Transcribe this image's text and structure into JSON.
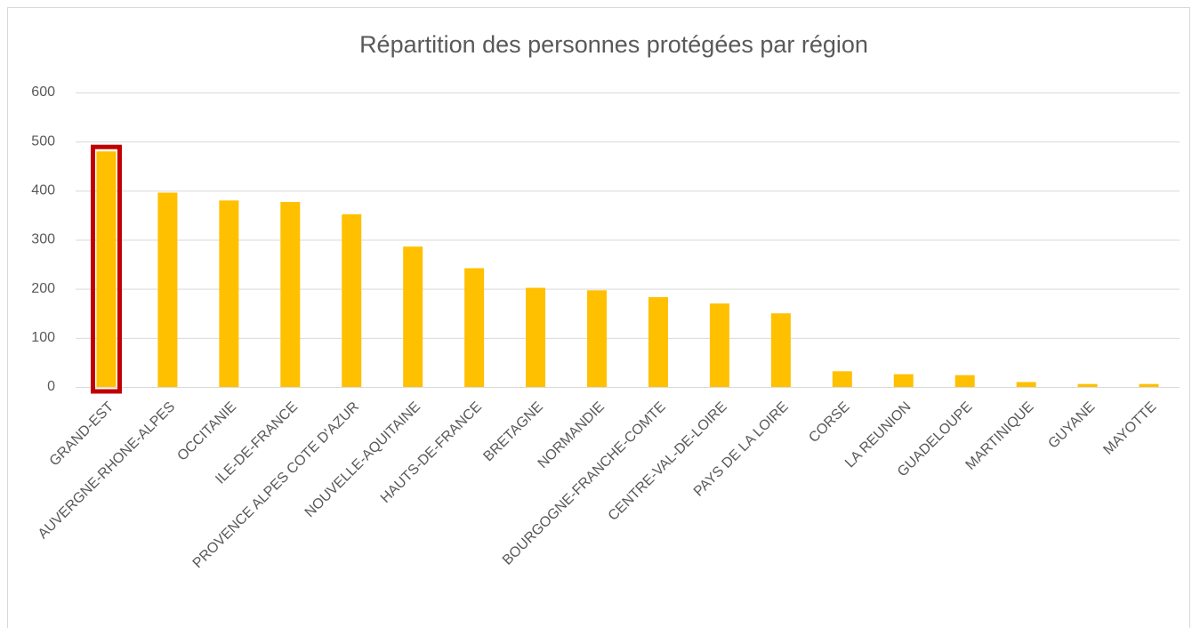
{
  "chart_data": {
    "type": "bar",
    "title": "Répartition des personnes protégées par région",
    "categories": [
      "GRAND-EST",
      "AUVERGNE-RHONE-ALPES",
      "OCCITANIE",
      "ILE-DE-FRANCE",
      "PROVENCE ALPES COTE D'AZUR",
      "NOUVELLE-AQUITAINE",
      "HAUTS-DE-FRANCE",
      "BRETAGNE",
      "NORMANDIE",
      "BOURGOGNE-FRANCHE-COMTE",
      "CENTRE-VAL-DE-LOIRE",
      "PAYS DE LA LOIRE",
      "CORSE",
      "LA REUNION",
      "GUADELOUPE",
      "MARTINIQUE",
      "GUYANE",
      "MAYOTTE"
    ],
    "values": [
      480,
      396,
      380,
      377,
      352,
      286,
      242,
      202,
      197,
      183,
      170,
      150,
      32,
      26,
      24,
      10,
      6,
      6
    ],
    "color": "#ffc000",
    "ylim": [
      0,
      600
    ],
    "yticks": [
      0,
      100,
      200,
      300,
      400,
      500,
      600
    ],
    "grid": true
  }
}
